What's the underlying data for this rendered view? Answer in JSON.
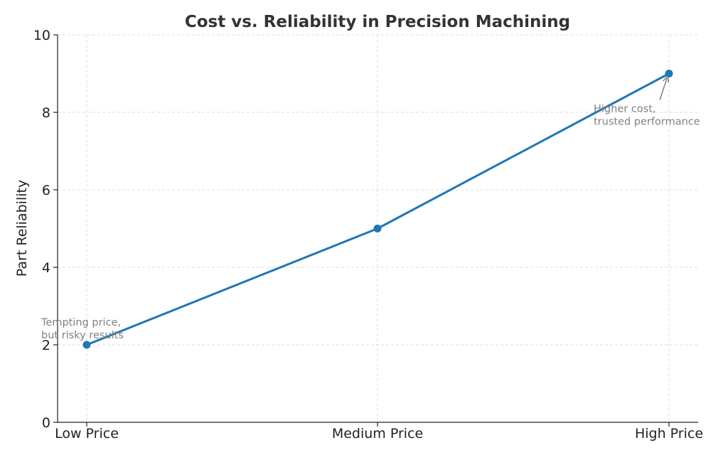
{
  "chart_data": {
    "type": "line",
    "title": "Cost vs. Reliability in Precision Machining",
    "xlabel": "",
    "ylabel": "Part Reliability",
    "categories": [
      "Low Price",
      "Medium Price",
      "High Price"
    ],
    "series": [
      {
        "values": [
          2,
          5,
          9
        ],
        "color": "#1f77b4"
      }
    ],
    "ylim": [
      0,
      10
    ],
    "yticks": [
      "0",
      "2",
      "4",
      "6",
      "8",
      "10"
    ],
    "grid": true,
    "annotations": [
      {
        "lines": [
          "Tempting price,",
          "but risky results"
        ],
        "category": "Low Price",
        "value": 2,
        "arrow": false
      },
      {
        "lines": [
          "Higher cost,",
          "trusted performance"
        ],
        "category": "High Price",
        "value": 9,
        "arrow": true
      }
    ]
  },
  "colors": {
    "line": "#1f77b4",
    "annotation": "#808080",
    "grid": "#dddddd"
  }
}
